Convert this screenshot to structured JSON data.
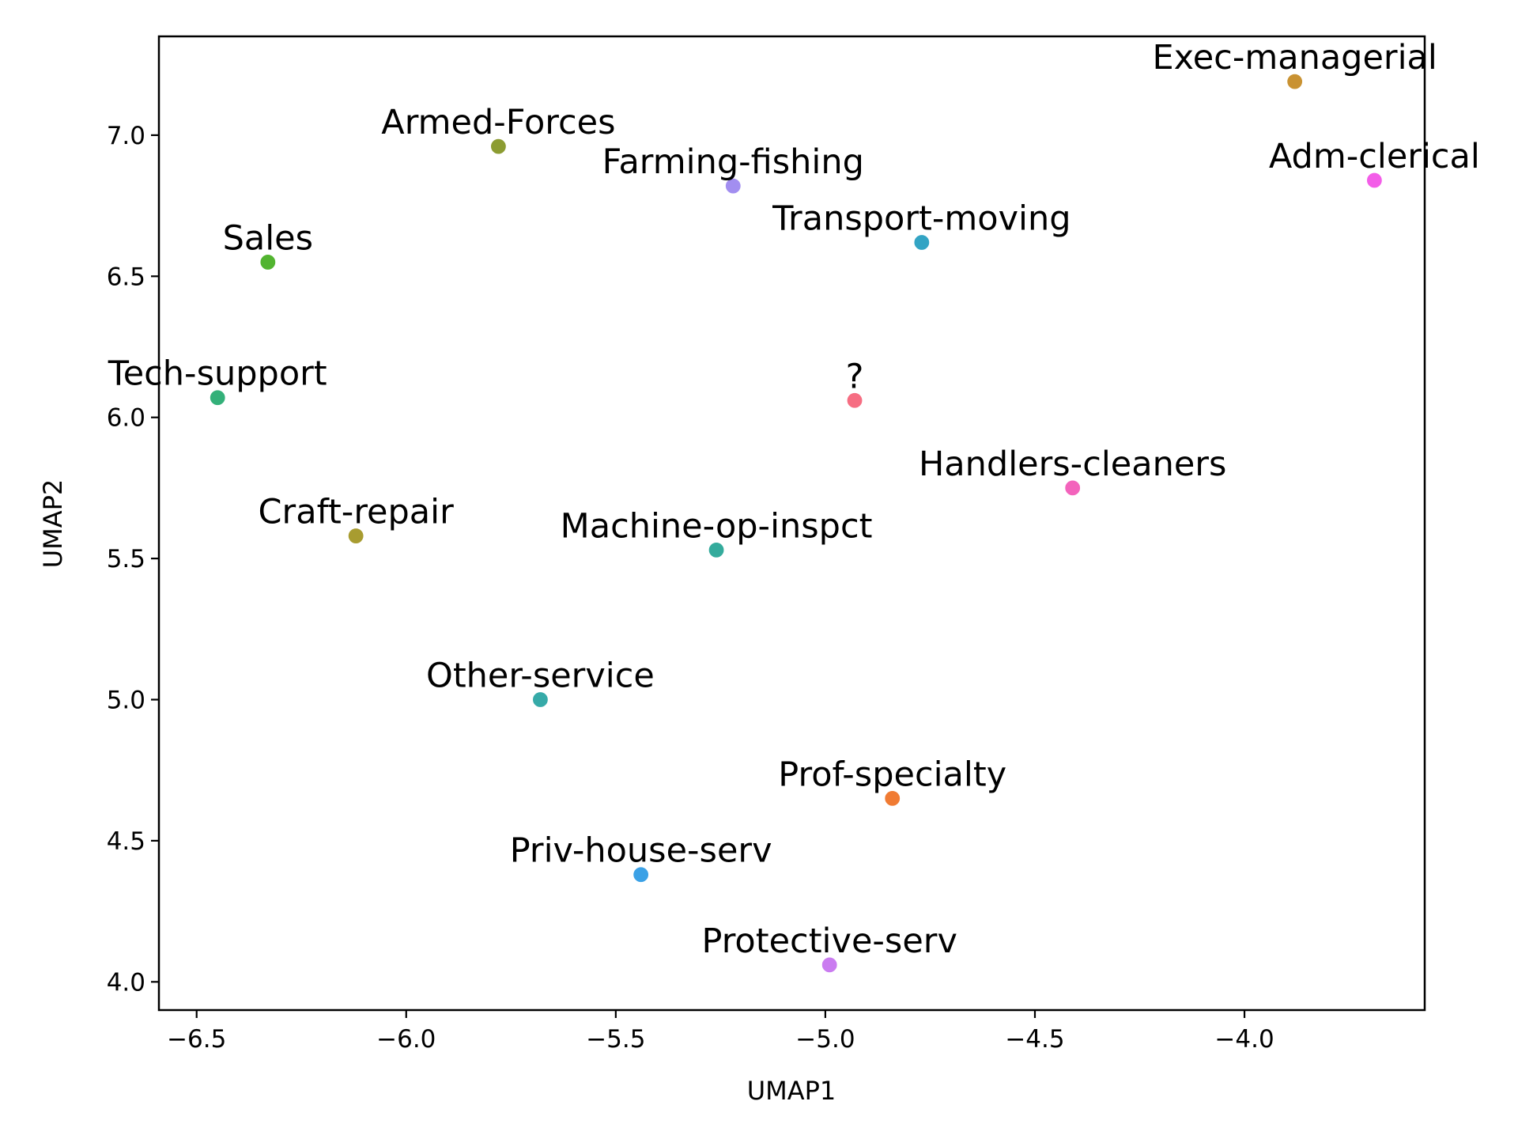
{
  "chart_data": {
    "type": "scatter",
    "title": "",
    "xlabel": "UMAP1",
    "ylabel": "UMAP2",
    "xlim": [
      -6.59,
      -3.57
    ],
    "ylim": [
      3.9,
      7.35
    ],
    "x_ticks": [
      -6.5,
      -6.0,
      -5.5,
      -5.0,
      -4.5,
      -4.0
    ],
    "x_tick_labels": [
      "−6.5",
      "−6.0",
      "−5.5",
      "−5.0",
      "−4.5",
      "−4.0"
    ],
    "y_ticks": [
      4.0,
      4.5,
      5.0,
      5.5,
      6.0,
      6.5,
      7.0
    ],
    "y_tick_labels": [
      "4.0",
      "4.5",
      "5.0",
      "5.5",
      "6.0",
      "6.5",
      "7.0"
    ],
    "grid": false,
    "points": [
      {
        "label": "Exec-managerial",
        "x": -3.88,
        "y": 7.19,
        "color": "#c99232"
      },
      {
        "label": "Armed-Forces",
        "x": -5.78,
        "y": 6.96,
        "color": "#8c9c32"
      },
      {
        "label": "Adm-clerical",
        "x": -3.69,
        "y": 6.84,
        "color": "#f35de8"
      },
      {
        "label": "Farming-fishing",
        "x": -5.22,
        "y": 6.82,
        "color": "#a28ef0"
      },
      {
        "label": "Transport-moving",
        "x": -4.77,
        "y": 6.62,
        "color": "#33a4c4"
      },
      {
        "label": "Sales",
        "x": -6.33,
        "y": 6.55,
        "color": "#52b430"
      },
      {
        "label": "Tech-support",
        "x": -6.45,
        "y": 6.07,
        "color": "#33b079"
      },
      {
        "label": "?",
        "x": -4.93,
        "y": 6.06,
        "color": "#f66d82"
      },
      {
        "label": "Handlers-cleaners",
        "x": -4.41,
        "y": 5.75,
        "color": "#f363bc"
      },
      {
        "label": "Craft-repair",
        "x": -6.12,
        "y": 5.58,
        "color": "#a89c30"
      },
      {
        "label": "Machine-op-inspct",
        "x": -5.26,
        "y": 5.53,
        "color": "#34ab9c"
      },
      {
        "label": "Other-service",
        "x": -5.68,
        "y": 5.0,
        "color": "#36aaa8"
      },
      {
        "label": "Prof-specialty",
        "x": -4.84,
        "y": 4.65,
        "color": "#f07b33"
      },
      {
        "label": "Priv-house-serv",
        "x": -5.44,
        "y": 4.38,
        "color": "#3ba1e6"
      },
      {
        "label": "Protective-serv",
        "x": -4.99,
        "y": 4.06,
        "color": "#ca7cf0"
      }
    ]
  }
}
